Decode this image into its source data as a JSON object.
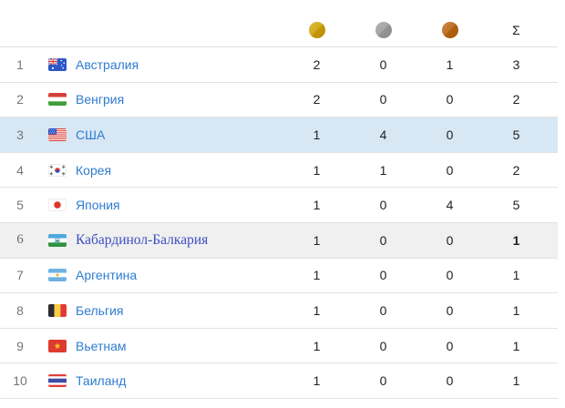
{
  "table": {
    "header": {
      "gold_icon": "gold-medal",
      "silver_icon": "silver-medal",
      "bronze_icon": "bronze-medal",
      "total_symbol": "Σ"
    },
    "colors": {
      "highlight_row_bg": "#d8e7f4",
      "special_row_bg": "#f0f0f0",
      "separator": "#e2e2e2",
      "rank_text": "#76767a",
      "count_text": "#212121",
      "country_link": "#2f7cd1",
      "special_country_link": "#3d4ec4",
      "gold": "#c9a00f",
      "silver": "#9c9c9c",
      "bronze": "#b2641a"
    },
    "rows": [
      {
        "rank": "1",
        "country": "Австралия",
        "flag": "au",
        "gold": "2",
        "silver": "0",
        "bronze": "1",
        "total": "3",
        "style": "normal"
      },
      {
        "rank": "2",
        "country": "Венгрия",
        "flag": "hu",
        "gold": "2",
        "silver": "0",
        "bronze": "0",
        "total": "2",
        "style": "normal"
      },
      {
        "rank": "3",
        "country": "США",
        "flag": "us",
        "gold": "1",
        "silver": "4",
        "bronze": "0",
        "total": "5",
        "style": "highlight"
      },
      {
        "rank": "4",
        "country": "Корея",
        "flag": "kr",
        "gold": "1",
        "silver": "1",
        "bronze": "0",
        "total": "2",
        "style": "normal"
      },
      {
        "rank": "5",
        "country": "Япония",
        "flag": "jp",
        "gold": "1",
        "silver": "0",
        "bronze": "4",
        "total": "5",
        "style": "normal"
      },
      {
        "rank": "6",
        "country": "Кабардинол-Балкария",
        "flag": "kb",
        "gold": "1",
        "silver": "0",
        "bronze": "0",
        "total": "1",
        "style": "special"
      },
      {
        "rank": "7",
        "country": "Аргентина",
        "flag": "ar",
        "gold": "1",
        "silver": "0",
        "bronze": "0",
        "total": "1",
        "style": "normal"
      },
      {
        "rank": "8",
        "country": "Бельгия",
        "flag": "be",
        "gold": "1",
        "silver": "0",
        "bronze": "0",
        "total": "1",
        "style": "normal"
      },
      {
        "rank": "9",
        "country": "Вьетнам",
        "flag": "vn",
        "gold": "1",
        "silver": "0",
        "bronze": "0",
        "total": "1",
        "style": "normal"
      },
      {
        "rank": "10",
        "country": "Таиланд",
        "flag": "th",
        "gold": "1",
        "silver": "0",
        "bronze": "0",
        "total": "1",
        "style": "normal"
      }
    ]
  }
}
